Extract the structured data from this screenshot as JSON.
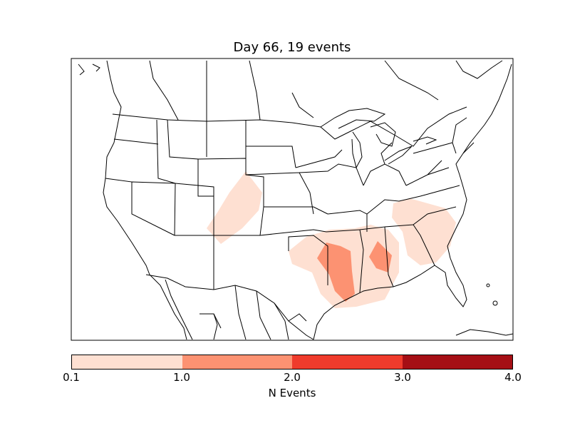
{
  "title": "Day 66, 19 events",
  "colorbar": {
    "label": "N Events",
    "ticks": [
      "0.1",
      "1.0",
      "2.0",
      "3.0",
      "4.0"
    ],
    "colors": [
      "#fee0d2",
      "#fc9272",
      "#ef3b2c",
      "#a50f15"
    ]
  },
  "chart_data": {
    "type": "heatmap",
    "title": "Day 66, 19 events",
    "colorbar_label": "N Events",
    "bins": [
      {
        "min": 0.1,
        "max": 1.0,
        "color": "#fee0d2"
      },
      {
        "min": 1.0,
        "max": 2.0,
        "color": "#fc9272"
      },
      {
        "min": 2.0,
        "max": 3.0,
        "color": "#ef3b2c"
      },
      {
        "min": 3.0,
        "max": 4.0,
        "color": "#a50f15"
      }
    ],
    "regions_shaded": [
      {
        "area": "Colorado / Wyoming",
        "level": "0.1-1.0"
      },
      {
        "area": "Oklahoma / Texas / Arkansas / Louisiana / Mississippi",
        "level": "0.1-1.0"
      },
      {
        "area": "Louisiana / Arkansas border",
        "level": "1.0-2.0"
      },
      {
        "area": "Alabama",
        "level": "1.0-2.0"
      },
      {
        "area": "Georgia / South Carolina / North Carolina",
        "level": "0.1-1.0"
      }
    ]
  }
}
